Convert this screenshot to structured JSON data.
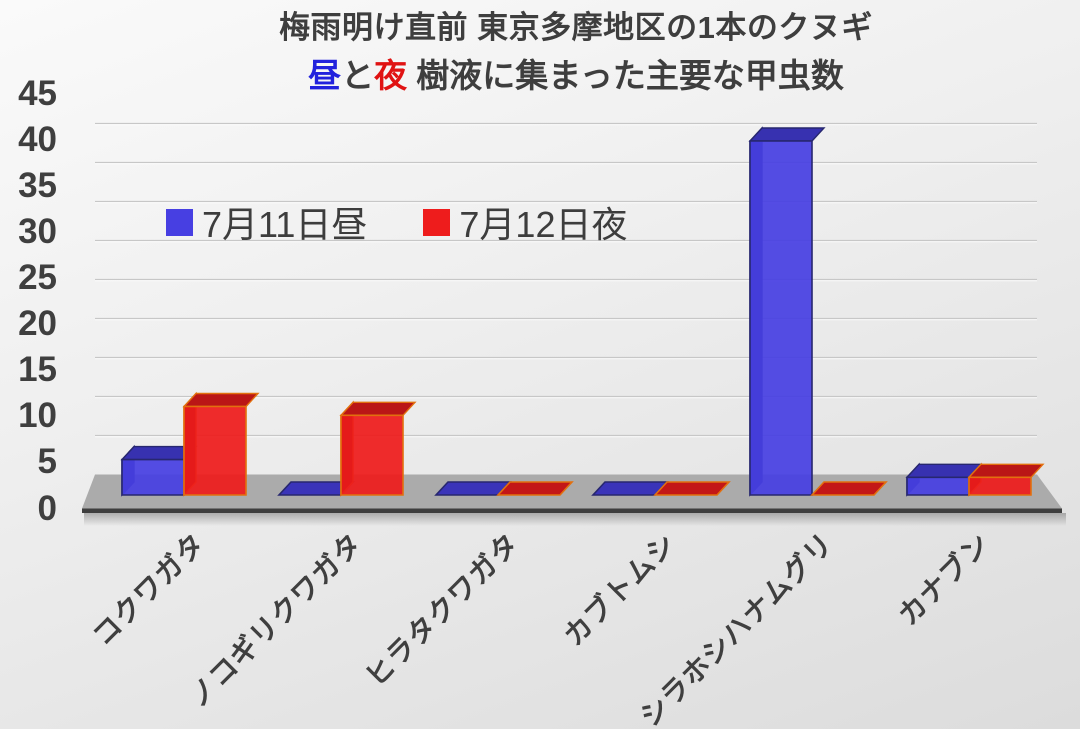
{
  "title": {
    "line1": "梅雨明け直前 東京多摩地区の1本のクヌギ",
    "line2_parts": [
      {
        "text": "昼",
        "color": "#2222dd"
      },
      {
        "text": "と",
        "color": "#3e3e3e"
      },
      {
        "text": "夜",
        "color": "#e01212"
      },
      {
        "text": " 樹液に集まった主要な甲虫数",
        "color": "#3e3e3e"
      }
    ]
  },
  "chart_data": {
    "type": "bar",
    "style": "3d-clustered-column",
    "title": "梅雨明け直前 東京多摩地区の1本のクヌギ 昼と夜 樹液に集まった主要な甲虫数",
    "categories": [
      "コクワガタ",
      "ノコギリクワガタ",
      "ヒラタクワガタ",
      "カブトムシ",
      "シラホシハナムグリ",
      "カナブン"
    ],
    "series": [
      {
        "name": "7月11日昼",
        "color": "#473fe2",
        "border": "#27276f",
        "values": [
          4,
          0,
          0,
          0,
          40,
          2
        ]
      },
      {
        "name": "7月12日夜",
        "color": "#ee1c1c",
        "border": "#e2700e",
        "values": [
          10,
          9,
          0,
          0,
          0,
          2
        ]
      }
    ],
    "xlabel": "",
    "ylabel": "",
    "ylim": [
      0,
      45
    ],
    "yticks": [
      0,
      5,
      10,
      15,
      20,
      25,
      30,
      35,
      40,
      45
    ],
    "grid": true,
    "legend_position": "top-left-inside"
  }
}
